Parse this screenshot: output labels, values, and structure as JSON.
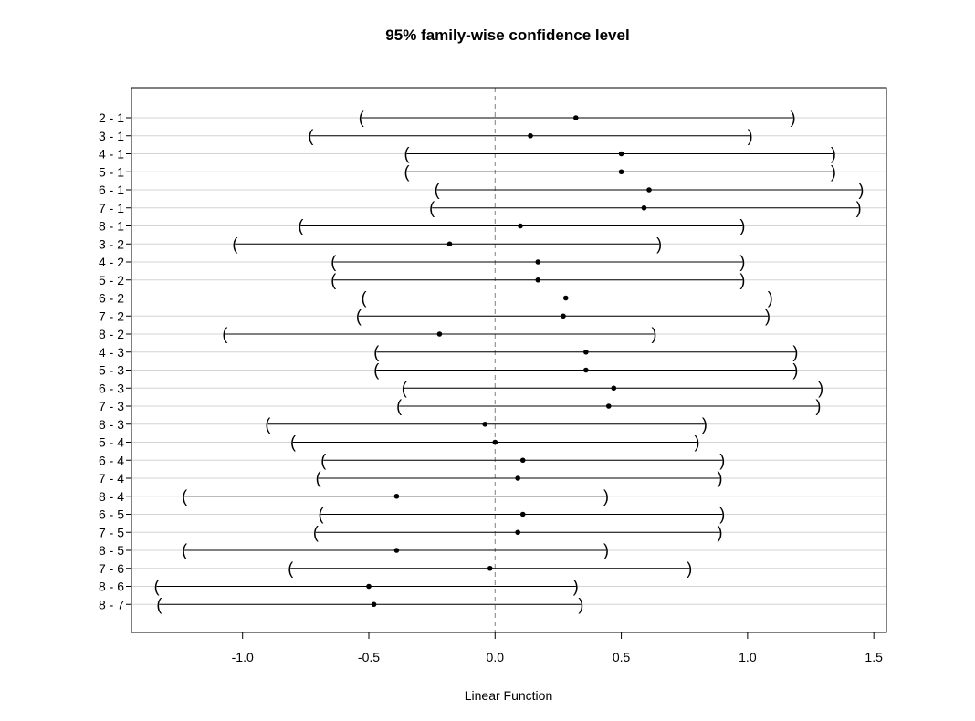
{
  "chart_data": {
    "type": "interval",
    "title": "95% family-wise confidence level",
    "xlabel": "Linear Function",
    "xlim": [
      -1.44,
      1.55
    ],
    "xticks": [
      -1.0,
      -0.5,
      0.0,
      0.5,
      1.0,
      1.5
    ],
    "xtick_labels": [
      "-1.0",
      "-0.5",
      "0.0",
      "0.5",
      "1.0",
      "1.5"
    ],
    "reference_line": 0.0,
    "grid": true,
    "comparisons": [
      {
        "label": "2 - 1",
        "lwr": -0.53,
        "estimate": 0.32,
        "upr": 1.18
      },
      {
        "label": "3 - 1",
        "lwr": -0.73,
        "estimate": 0.14,
        "upr": 1.01
      },
      {
        "label": "4 - 1",
        "lwr": -0.35,
        "estimate": 0.5,
        "upr": 1.34
      },
      {
        "label": "5 - 1",
        "lwr": -0.35,
        "estimate": 0.5,
        "upr": 1.34
      },
      {
        "label": "6 - 1",
        "lwr": -0.23,
        "estimate": 0.61,
        "upr": 1.45
      },
      {
        "label": "7 - 1",
        "lwr": -0.25,
        "estimate": 0.59,
        "upr": 1.44
      },
      {
        "label": "8 - 1",
        "lwr": -0.77,
        "estimate": 0.1,
        "upr": 0.98
      },
      {
        "label": "3 - 2",
        "lwr": -1.03,
        "estimate": -0.18,
        "upr": 0.65
      },
      {
        "label": "4 - 2",
        "lwr": -0.64,
        "estimate": 0.17,
        "upr": 0.98
      },
      {
        "label": "5 - 2",
        "lwr": -0.64,
        "estimate": 0.17,
        "upr": 0.98
      },
      {
        "label": "6 - 2",
        "lwr": -0.52,
        "estimate": 0.28,
        "upr": 1.09
      },
      {
        "label": "7 - 2",
        "lwr": -0.54,
        "estimate": 0.27,
        "upr": 1.08
      },
      {
        "label": "8 - 2",
        "lwr": -1.07,
        "estimate": -0.22,
        "upr": 0.63
      },
      {
        "label": "4 - 3",
        "lwr": -0.47,
        "estimate": 0.36,
        "upr": 1.19
      },
      {
        "label": "5 - 3",
        "lwr": -0.47,
        "estimate": 0.36,
        "upr": 1.19
      },
      {
        "label": "6 - 3",
        "lwr": -0.36,
        "estimate": 0.47,
        "upr": 1.29
      },
      {
        "label": "7 - 3",
        "lwr": -0.38,
        "estimate": 0.45,
        "upr": 1.28
      },
      {
        "label": "8 - 3",
        "lwr": -0.9,
        "estimate": -0.04,
        "upr": 0.83
      },
      {
        "label": "5 - 4",
        "lwr": -0.8,
        "estimate": 0.0,
        "upr": 0.8
      },
      {
        "label": "6 - 4",
        "lwr": -0.68,
        "estimate": 0.11,
        "upr": 0.9
      },
      {
        "label": "7 - 4",
        "lwr": -0.7,
        "estimate": 0.09,
        "upr": 0.89
      },
      {
        "label": "8 - 4",
        "lwr": -1.23,
        "estimate": -0.39,
        "upr": 0.44
      },
      {
        "label": "6 - 5",
        "lwr": -0.69,
        "estimate": 0.11,
        "upr": 0.9
      },
      {
        "label": "7 - 5",
        "lwr": -0.71,
        "estimate": 0.09,
        "upr": 0.89
      },
      {
        "label": "8 - 5",
        "lwr": -1.23,
        "estimate": -0.39,
        "upr": 0.44
      },
      {
        "label": "7 - 6",
        "lwr": -0.81,
        "estimate": -0.02,
        "upr": 0.77
      },
      {
        "label": "8 - 6",
        "lwr": -1.34,
        "estimate": -0.5,
        "upr": 0.32
      },
      {
        "label": "8 - 7",
        "lwr": -1.33,
        "estimate": -0.48,
        "upr": 0.34
      }
    ],
    "colors": {
      "line": "#000000",
      "grid": "#d3d3d3",
      "reference": "#808080"
    }
  }
}
